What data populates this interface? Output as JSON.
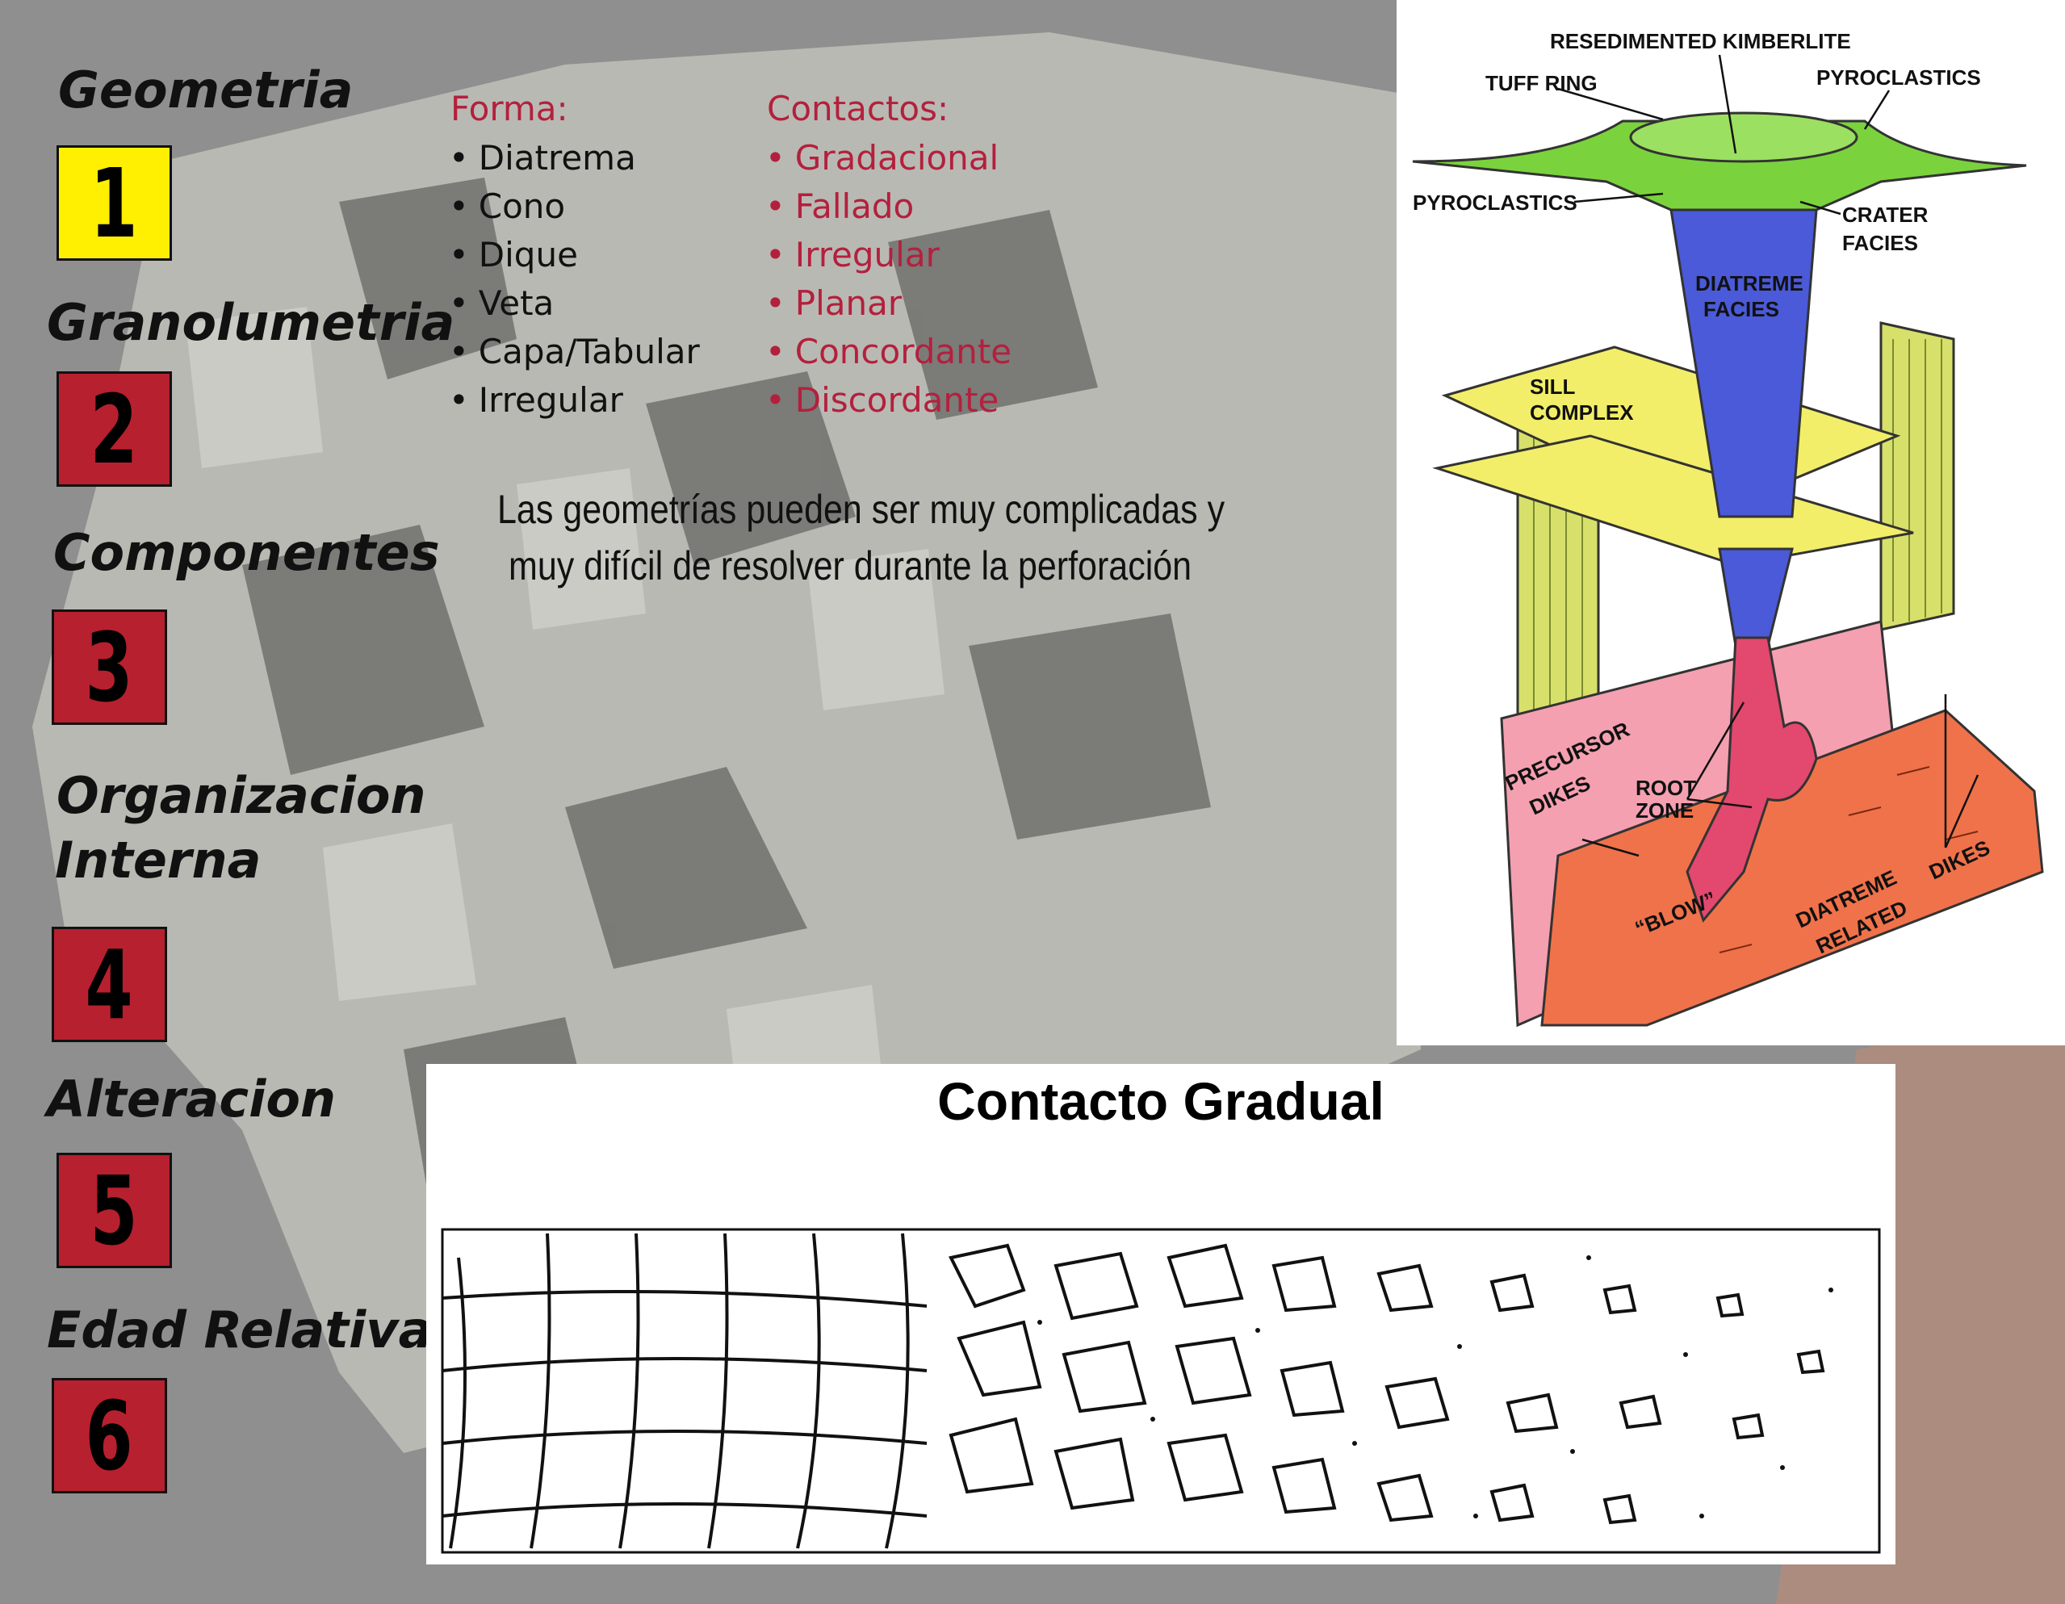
{
  "sections": [
    {
      "title": "Geometria",
      "number": "1",
      "color": "#ffef00"
    },
    {
      "title": "Granolumetria",
      "number": "2",
      "color": "#b7202e"
    },
    {
      "title": "Componentes",
      "number": "3",
      "color": "#b7202e"
    },
    {
      "title": "Organizacion Interna",
      "title_line1": "Organizacion",
      "title_line2": "Interna",
      "number": "4",
      "color": "#b7202e"
    },
    {
      "title": "Alteracion",
      "number": "5",
      "color": "#b7202e"
    },
    {
      "title": "Edad Relativa",
      "number": "6",
      "color": "#b7202e"
    }
  ],
  "forma": {
    "heading": "Forma:",
    "items": [
      "Diatrema",
      "Cono",
      "Dique",
      "Veta",
      "Capa/Tabular",
      "Irregular"
    ]
  },
  "contactos": {
    "heading": "Contactos:",
    "items": [
      "Gradacional",
      "Fallado",
      "Irregular",
      "Planar",
      "Concordante",
      "Discordante"
    ]
  },
  "note": {
    "line1": "Las geometrías pueden ser muy complicadas y",
    "line2": "muy difícil de resolver durante la perforación"
  },
  "kimberlite_diagram": {
    "labels": {
      "resedimented": "RESEDIMENTED KIMBERLITE",
      "tuff_ring": "TUFF RING",
      "pyroclastics_right": "PYROCLASTICS",
      "pyroclastics_left": "PYROCLASTICS",
      "crater_1": "CRATER",
      "crater_2": "FACIES",
      "diatreme_1": "DIATREME",
      "diatreme_2": "FACIES",
      "sill_1": "SILL",
      "sill_2": "COMPLEX",
      "precursor_1": "PRECURSOR",
      "precursor_2": "DIKES",
      "root_1": "ROOT",
      "root_2": "ZONE",
      "blow": "“BLOW”",
      "diatreme_related_1": "DIATREME",
      "diatreme_related_2": "RELATED",
      "dikes": "DIKES"
    },
    "colors": {
      "crater": "#7ad33c",
      "diatreme": "#4a5ad8",
      "sill": "#f2ee6a",
      "wall": "#d7e06a",
      "precursor": "#f4a0b0",
      "related": "#f0724a",
      "root": "#e3486e"
    }
  },
  "contacto_gradual": {
    "title": "Contacto Gradual"
  }
}
